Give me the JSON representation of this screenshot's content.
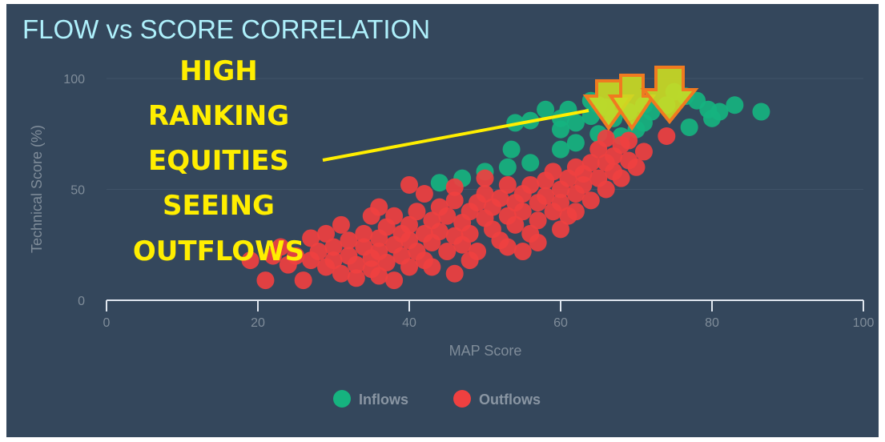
{
  "chart_data": {
    "type": "scatter",
    "title": "FLOW vs SCORE CORRELATION",
    "xlabel": "MAP Score",
    "ylabel": "Technical Score (%)",
    "xlim": [
      0,
      100
    ],
    "ylim": [
      0,
      100
    ],
    "xticks": [
      "0",
      "20",
      "40",
      "60",
      "80",
      "100"
    ],
    "yticks": [
      "0",
      "50",
      "100"
    ],
    "grid": "horizontal",
    "legend_position": "bottom",
    "series": [
      {
        "name": "Inflows",
        "color": "#16b37f",
        "points": [
          [
            86.5,
            85
          ],
          [
            83,
            88
          ],
          [
            81,
            85
          ],
          [
            79.5,
            86
          ],
          [
            78,
            90
          ],
          [
            76.5,
            92
          ],
          [
            75,
            94
          ],
          [
            74,
            88
          ],
          [
            72,
            85
          ],
          [
            71,
            80
          ],
          [
            70,
            77
          ],
          [
            69,
            85
          ],
          [
            67,
            82
          ],
          [
            66,
            87
          ],
          [
            65,
            88
          ],
          [
            64,
            83
          ],
          [
            62,
            80
          ],
          [
            61,
            86
          ],
          [
            60,
            77
          ],
          [
            60,
            82
          ],
          [
            58,
            86
          ],
          [
            56,
            81
          ],
          [
            54,
            80
          ],
          [
            53.5,
            68
          ],
          [
            60,
            68
          ],
          [
            62,
            71
          ],
          [
            65,
            75
          ],
          [
            68,
            74
          ],
          [
            50,
            58
          ],
          [
            47,
            55
          ],
          [
            44,
            53
          ],
          [
            53,
            60
          ],
          [
            56,
            62
          ],
          [
            71,
            88
          ],
          [
            77,
            78
          ],
          [
            80,
            82
          ],
          [
            64,
            90
          ]
        ]
      },
      {
        "name": "Outflows",
        "color": "#ef4040",
        "points": [
          [
            19,
            18
          ],
          [
            21,
            9
          ],
          [
            26,
            9
          ],
          [
            33,
            10
          ],
          [
            38,
            9
          ],
          [
            46,
            12
          ],
          [
            22,
            20
          ],
          [
            24,
            16
          ],
          [
            25,
            20
          ],
          [
            27,
            18
          ],
          [
            28,
            22
          ],
          [
            29,
            15
          ],
          [
            30,
            24
          ],
          [
            30,
            18
          ],
          [
            31,
            12
          ],
          [
            32,
            20
          ],
          [
            32,
            27
          ],
          [
            33,
            16
          ],
          [
            34,
            24
          ],
          [
            34,
            30
          ],
          [
            35,
            19
          ],
          [
            35,
            14
          ],
          [
            36,
            28
          ],
          [
            36,
            22
          ],
          [
            37,
            33
          ],
          [
            37,
            17
          ],
          [
            38,
            25
          ],
          [
            38,
            38
          ],
          [
            39,
            20
          ],
          [
            39,
            30
          ],
          [
            40,
            27
          ],
          [
            40,
            34
          ],
          [
            41,
            22
          ],
          [
            41,
            40
          ],
          [
            42,
            30
          ],
          [
            42,
            18
          ],
          [
            43,
            36
          ],
          [
            43,
            26
          ],
          [
            44,
            31
          ],
          [
            44,
            42
          ],
          [
            45,
            22
          ],
          [
            45,
            38
          ],
          [
            46,
            29
          ],
          [
            46,
            45
          ],
          [
            47,
            35
          ],
          [
            47,
            25
          ],
          [
            48,
            40
          ],
          [
            48,
            30
          ],
          [
            49,
            44
          ],
          [
            49,
            22
          ],
          [
            50,
            37
          ],
          [
            50,
            48
          ],
          [
            51,
            32
          ],
          [
            51,
            42
          ],
          [
            52,
            27
          ],
          [
            52,
            46
          ],
          [
            53,
            38
          ],
          [
            53,
            52
          ],
          [
            54,
            34
          ],
          [
            54,
            44
          ],
          [
            55,
            48
          ],
          [
            55,
            40
          ],
          [
            56,
            30
          ],
          [
            56,
            52
          ],
          [
            57,
            44
          ],
          [
            57,
            36
          ],
          [
            58,
            54
          ],
          [
            58,
            47
          ],
          [
            59,
            40
          ],
          [
            59,
            58
          ],
          [
            60,
            50
          ],
          [
            60,
            44
          ],
          [
            61,
            55
          ],
          [
            61,
            38
          ],
          [
            62,
            60
          ],
          [
            62,
            48
          ],
          [
            63,
            52
          ],
          [
            63,
            57
          ],
          [
            64,
            45
          ],
          [
            64,
            62
          ],
          [
            65,
            55
          ],
          [
            65,
            68
          ],
          [
            66,
            50
          ],
          [
            66,
            62
          ],
          [
            67,
            58
          ],
          [
            67,
            65
          ],
          [
            68,
            70
          ],
          [
            68,
            55
          ],
          [
            69,
            63
          ],
          [
            69,
            72
          ],
          [
            70,
            60
          ],
          [
            66,
            73
          ],
          [
            74,
            74
          ],
          [
            71,
            67
          ],
          [
            36,
            42
          ],
          [
            35,
            38
          ],
          [
            42,
            48
          ],
          [
            40,
            52
          ],
          [
            46,
            51
          ],
          [
            50,
            55
          ],
          [
            27,
            28
          ],
          [
            29,
            30
          ],
          [
            31,
            34
          ],
          [
            23,
            24
          ],
          [
            43,
            15
          ],
          [
            48,
            18
          ],
          [
            36,
            11
          ],
          [
            40,
            15
          ],
          [
            53,
            24
          ],
          [
            57,
            26
          ],
          [
            60,
            32
          ],
          [
            55,
            22
          ],
          [
            62,
            40
          ]
        ]
      }
    ],
    "annotation": {
      "lines": [
        "HIGH",
        "RANKING",
        "EQUITIES",
        "SEEING",
        "OUTFLOWS"
      ],
      "text_color": "#ffee00",
      "arrow_color": "#ccdd22",
      "arrow_outline": "#f07a20"
    }
  },
  "colors": {
    "background": "#34475c",
    "title": "#aef0fb",
    "axis": "#dfe6ee"
  }
}
